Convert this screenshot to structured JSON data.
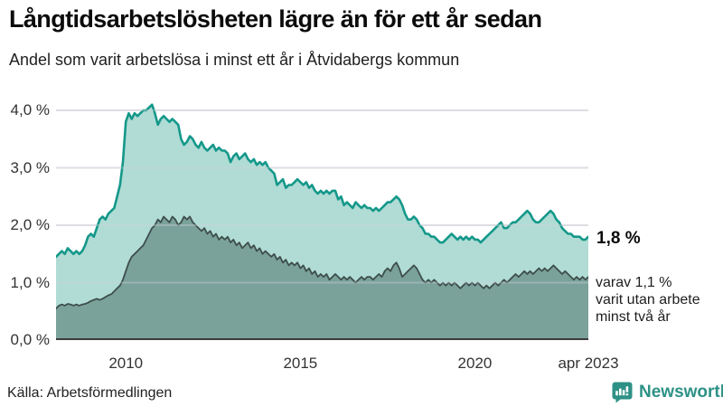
{
  "header": {
    "title": "Långtidsarbetslösheten lägre än för ett år sedan",
    "subtitle": "Andel som varit arbetslösa i minst ett år i Åtvidabergs kommun"
  },
  "chart_data": {
    "type": "area",
    "x_start": "2008-01",
    "x_end": "2023-04",
    "x_interval": "monthly",
    "ylim": [
      0,
      4.2
    ],
    "grid": true,
    "yticks": [
      {
        "value": 0,
        "label": "0,0 %"
      },
      {
        "value": 1,
        "label": "1,0 %"
      },
      {
        "value": 2,
        "label": "2,0 %"
      },
      {
        "value": 3,
        "label": "3,0 %"
      },
      {
        "value": 4,
        "label": "4,0 %"
      }
    ],
    "xticks": [
      {
        "label": "2010",
        "index": 24
      },
      {
        "label": "2015",
        "index": 84
      },
      {
        "label": "2020",
        "index": 144
      },
      {
        "label": "apr 2023",
        "index": 183
      }
    ],
    "series": [
      {
        "name": "Arbetslösa minst ett år",
        "line_color": "#14988a",
        "fill_color": "#b0dcd5",
        "line_width": 2.6,
        "values": [
          1.45,
          1.5,
          1.55,
          1.5,
          1.6,
          1.55,
          1.5,
          1.55,
          1.5,
          1.55,
          1.65,
          1.8,
          1.85,
          1.8,
          1.95,
          2.1,
          2.15,
          2.1,
          2.2,
          2.25,
          2.3,
          2.5,
          2.7,
          3.1,
          3.8,
          3.95,
          3.85,
          3.95,
          3.9,
          3.95,
          4.0,
          4.0,
          4.05,
          4.1,
          3.95,
          3.75,
          3.85,
          3.9,
          3.85,
          3.8,
          3.85,
          3.8,
          3.75,
          3.5,
          3.4,
          3.45,
          3.55,
          3.5,
          3.4,
          3.35,
          3.45,
          3.35,
          3.3,
          3.35,
          3.4,
          3.3,
          3.35,
          3.3,
          3.3,
          3.25,
          3.1,
          3.2,
          3.25,
          3.15,
          3.2,
          3.25,
          3.15,
          3.1,
          3.15,
          3.05,
          3.1,
          3.05,
          3.1,
          3.0,
          2.95,
          2.9,
          2.7,
          2.75,
          2.8,
          2.65,
          2.7,
          2.7,
          2.75,
          2.8,
          2.75,
          2.7,
          2.75,
          2.65,
          2.7,
          2.6,
          2.55,
          2.6,
          2.55,
          2.6,
          2.55,
          2.6,
          2.6,
          2.45,
          2.5,
          2.35,
          2.4,
          2.35,
          2.3,
          2.4,
          2.35,
          2.3,
          2.35,
          2.3,
          2.3,
          2.25,
          2.3,
          2.25,
          2.3,
          2.35,
          2.4,
          2.4,
          2.45,
          2.5,
          2.45,
          2.35,
          2.2,
          2.1,
          2.1,
          2.15,
          2.1,
          2.0,
          1.95,
          1.85,
          1.85,
          1.8,
          1.8,
          1.75,
          1.7,
          1.7,
          1.75,
          1.8,
          1.85,
          1.8,
          1.75,
          1.8,
          1.75,
          1.8,
          1.75,
          1.8,
          1.75,
          1.75,
          1.7,
          1.75,
          1.8,
          1.85,
          1.9,
          1.95,
          2.0,
          2.05,
          1.95,
          1.95,
          2.0,
          2.05,
          2.05,
          2.1,
          2.15,
          2.2,
          2.25,
          2.2,
          2.1,
          2.05,
          2.05,
          2.1,
          2.15,
          2.2,
          2.25,
          2.2,
          2.1,
          2.05,
          1.95,
          1.9,
          1.85,
          1.85,
          1.8,
          1.8,
          1.8,
          1.75,
          1.75,
          1.8
        ]
      },
      {
        "name": "Arbetslösa minst två år",
        "line_color": "#3e4e4b",
        "fill_color": "#7aa29b",
        "line_width": 1.8,
        "values": [
          0.55,
          0.6,
          0.62,
          0.6,
          0.63,
          0.62,
          0.6,
          0.62,
          0.6,
          0.62,
          0.63,
          0.65,
          0.68,
          0.7,
          0.72,
          0.7,
          0.72,
          0.75,
          0.78,
          0.8,
          0.85,
          0.9,
          0.95,
          1.05,
          1.2,
          1.35,
          1.45,
          1.5,
          1.55,
          1.6,
          1.65,
          1.75,
          1.85,
          1.95,
          2.0,
          2.1,
          2.05,
          2.15,
          2.1,
          2.05,
          2.15,
          2.1,
          2.0,
          2.05,
          2.15,
          2.1,
          2.15,
          2.05,
          2.0,
          1.95,
          1.9,
          1.95,
          1.85,
          1.9,
          1.8,
          1.85,
          1.75,
          1.8,
          1.75,
          1.8,
          1.7,
          1.75,
          1.65,
          1.7,
          1.6,
          1.65,
          1.7,
          1.6,
          1.65,
          1.55,
          1.6,
          1.5,
          1.55,
          1.5,
          1.45,
          1.5,
          1.4,
          1.45,
          1.35,
          1.4,
          1.3,
          1.35,
          1.3,
          1.35,
          1.25,
          1.3,
          1.2,
          1.25,
          1.15,
          1.2,
          1.1,
          1.15,
          1.1,
          1.15,
          1.05,
          1.1,
          1.15,
          1.1,
          1.05,
          1.1,
          1.05,
          1.1,
          1.05,
          1.0,
          1.05,
          1.1,
          1.05,
          1.1,
          1.1,
          1.05,
          1.1,
          1.15,
          1.1,
          1.2,
          1.25,
          1.2,
          1.3,
          1.35,
          1.25,
          1.1,
          1.15,
          1.2,
          1.25,
          1.3,
          1.25,
          1.15,
          1.05,
          1.0,
          1.05,
          1.0,
          1.05,
          1.0,
          0.95,
          1.0,
          0.95,
          1.0,
          0.95,
          1.0,
          0.95,
          0.9,
          0.95,
          1.0,
          0.95,
          1.0,
          0.95,
          1.0,
          0.95,
          0.9,
          0.95,
          0.9,
          0.95,
          1.0,
          0.95,
          1.0,
          1.05,
          1.0,
          1.05,
          1.1,
          1.15,
          1.1,
          1.15,
          1.2,
          1.15,
          1.2,
          1.15,
          1.2,
          1.25,
          1.2,
          1.25,
          1.2,
          1.25,
          1.3,
          1.25,
          1.2,
          1.15,
          1.2,
          1.15,
          1.1,
          1.05,
          1.1,
          1.05,
          1.1,
          1.05,
          1.1
        ]
      }
    ],
    "annotations": {
      "latest_total": "1,8 %",
      "note_line1": "varav 1,1 %",
      "note_line2": "varit utan arbete",
      "note_line3": "minst två år"
    },
    "colors": {
      "gridline": "#e6e6ea",
      "baseline": "#3c3c3c",
      "axis_text": "#333333"
    }
  },
  "footer": {
    "source": "Källa: Arbetsförmedlingen",
    "brand": "Newsworthy",
    "brand_color": "#2e9186"
  }
}
